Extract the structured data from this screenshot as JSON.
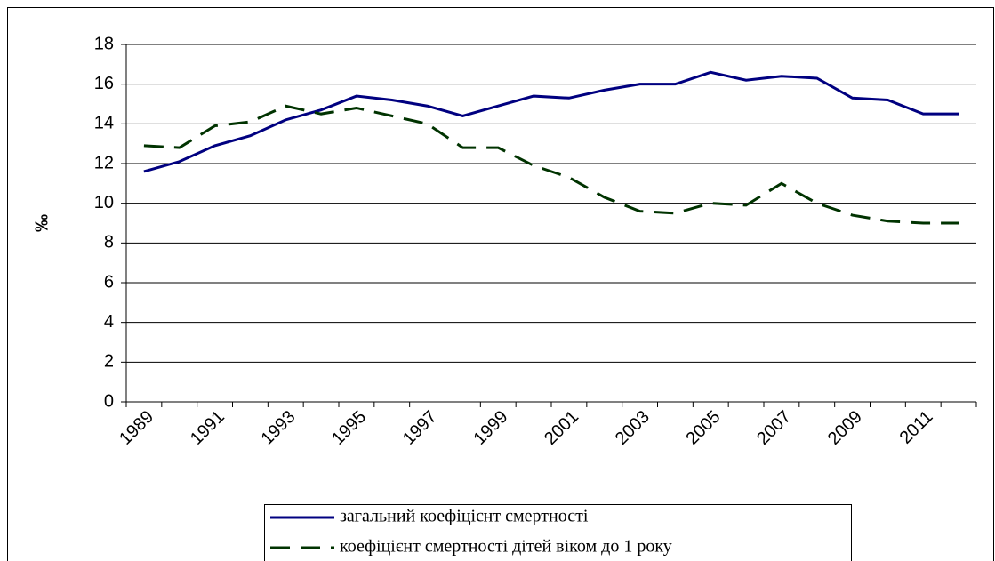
{
  "chart_data": {
    "type": "line",
    "y_label": "‰",
    "categories": [
      "1989",
      null,
      "1991",
      null,
      "1993",
      null,
      "1995",
      null,
      "1997",
      null,
      "1999",
      null,
      "2001",
      null,
      "2003",
      null,
      "2005",
      null,
      "2007",
      null,
      "2009",
      null,
      "2011",
      null
    ],
    "series": [
      {
        "name": "загальний коефіцієнт смертності",
        "color": "#000080",
        "linestyle": "solid",
        "values": [
          11.6,
          12.1,
          12.9,
          13.4,
          14.2,
          14.7,
          15.4,
          15.2,
          14.9,
          14.4,
          14.9,
          15.4,
          15.3,
          15.7,
          16.0,
          16.0,
          16.6,
          16.2,
          16.4,
          16.3,
          15.3,
          15.2,
          14.5,
          14.5
        ]
      },
      {
        "name": "коефіцієнт смертності дітей віком до 1 року",
        "color": "#003300",
        "linestyle": "dashed",
        "values": [
          12.9,
          12.8,
          13.9,
          14.1,
          14.9,
          14.5,
          14.8,
          14.4,
          14.0,
          12.8,
          12.8,
          11.9,
          11.3,
          10.3,
          9.6,
          9.5,
          10.0,
          9.9,
          11.0,
          10.0,
          9.4,
          9.1,
          9.0,
          9.0
        ]
      }
    ],
    "ylim": [
      0,
      18
    ],
    "yticks": [
      0,
      2,
      4,
      6,
      8,
      10,
      12,
      14,
      16,
      18
    ],
    "grid": true,
    "legend": "bottom"
  }
}
